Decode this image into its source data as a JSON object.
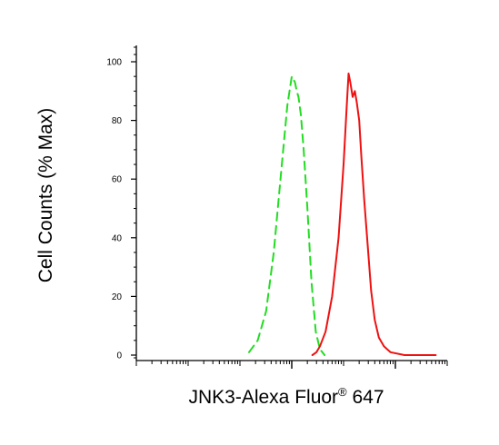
{
  "chart_data": {
    "type": "line",
    "title": "",
    "xlabel": "JNK3-Alexa Fluor",
    "xlabel_superscript": "®",
    "xlabel_suffix": " 647",
    "ylabel": "Cell Counts (% Max)",
    "x_scale": "log",
    "xlim": [
      1,
      1000000
    ],
    "ylim": [
      0,
      100
    ],
    "y_ticks": [
      "0",
      "20",
      "40",
      "60",
      "80",
      "100"
    ],
    "y_tick_values": [
      0,
      20,
      40,
      60,
      80,
      100
    ],
    "grid": false,
    "series": [
      {
        "style": "dashed",
        "color": "#22dd22",
        "x": [
          150,
          220,
          320,
          450,
          620,
          820,
          1000,
          1150,
          1250,
          1350,
          1500,
          1700,
          2000,
          2400,
          2900,
          3500,
          4300
        ],
        "y": [
          1,
          5,
          15,
          35,
          62,
          85,
          95,
          93,
          90,
          88,
          82,
          70,
          50,
          25,
          8,
          2,
          0
        ]
      },
      {
        "style": "solid",
        "color": "#ee1111",
        "x": [
          2500,
          3000,
          3500,
          4500,
          6000,
          8000,
          10000,
          11500,
          12500,
          13500,
          15000,
          16500,
          18000,
          20000,
          22000,
          25000,
          29000,
          34000,
          40000,
          48000,
          60000,
          80000,
          150000,
          600000
        ],
        "y": [
          0,
          1,
          3,
          8,
          20,
          40,
          65,
          85,
          96,
          93,
          88,
          90,
          86,
          80,
          68,
          53,
          38,
          22,
          12,
          6,
          3,
          1,
          0,
          0
        ]
      }
    ]
  }
}
